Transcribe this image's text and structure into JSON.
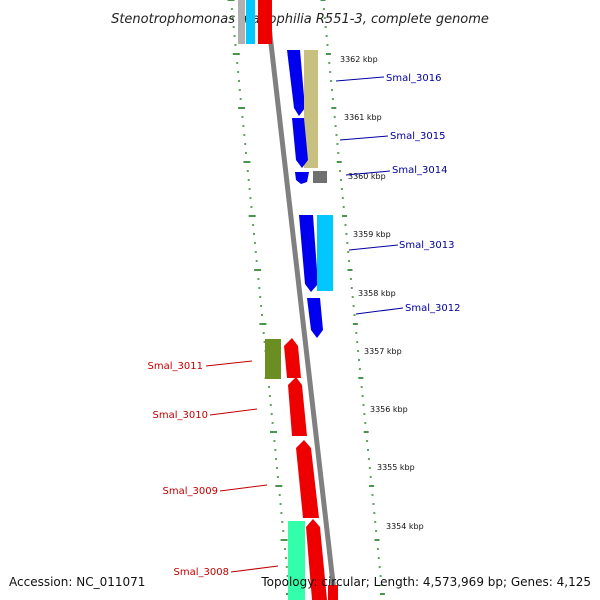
{
  "title": "Stenotrophomonas maltophilia R551-3, complete genome",
  "accession_text": "Accession: NC_011071",
  "summary_text": "Topology: circular; Length: 4,573,969 bp; Genes: 4,125",
  "colors": {
    "backbone": "#808080",
    "tick_green": "#1e7a1e",
    "label_blue": "#0000a0",
    "label_red": "#c00000",
    "gene_blue": "#0000ee",
    "gene_red": "#ee0000",
    "gene_olive": "#c8c080",
    "gene_cyan": "#00c8ff",
    "gene_darkgreen": "#6b8e23",
    "gene_seagreen": "#33ffaa",
    "gene_gray": "#707070"
  },
  "kbp_markers": [
    {
      "id": "kbp-3362",
      "text": "3362 kbp"
    },
    {
      "id": "kbp-3361",
      "text": "3361 kbp"
    },
    {
      "id": "kbp-3360",
      "text": "3360 kbp"
    },
    {
      "id": "kbp-3359",
      "text": "3359 kbp"
    },
    {
      "id": "kbp-3358",
      "text": "3358 kbp"
    },
    {
      "id": "kbp-3357",
      "text": "3357 kbp"
    },
    {
      "id": "kbp-3356",
      "text": "3356 kbp"
    },
    {
      "id": "kbp-3355",
      "text": "3355 kbp"
    },
    {
      "id": "kbp-3354",
      "text": "3354 kbp"
    }
  ],
  "gene_labels": [
    {
      "id": "smal-3016",
      "text": "Smal_3016",
      "side": "right"
    },
    {
      "id": "smal-3015",
      "text": "Smal_3015",
      "side": "right"
    },
    {
      "id": "smal-3014",
      "text": "Smal_3014",
      "side": "right"
    },
    {
      "id": "smal-3013",
      "text": "Smal_3013",
      "side": "right"
    },
    {
      "id": "smal-3012",
      "text": "Smal_3012",
      "side": "right"
    },
    {
      "id": "smal-3011",
      "text": "Smal_3011",
      "side": "left"
    },
    {
      "id": "smal-3010",
      "text": "Smal_3010",
      "side": "left"
    },
    {
      "id": "smal-3009",
      "text": "Smal_3009",
      "side": "left"
    },
    {
      "id": "smal-3008",
      "text": "Smal_3008",
      "side": "left"
    }
  ]
}
